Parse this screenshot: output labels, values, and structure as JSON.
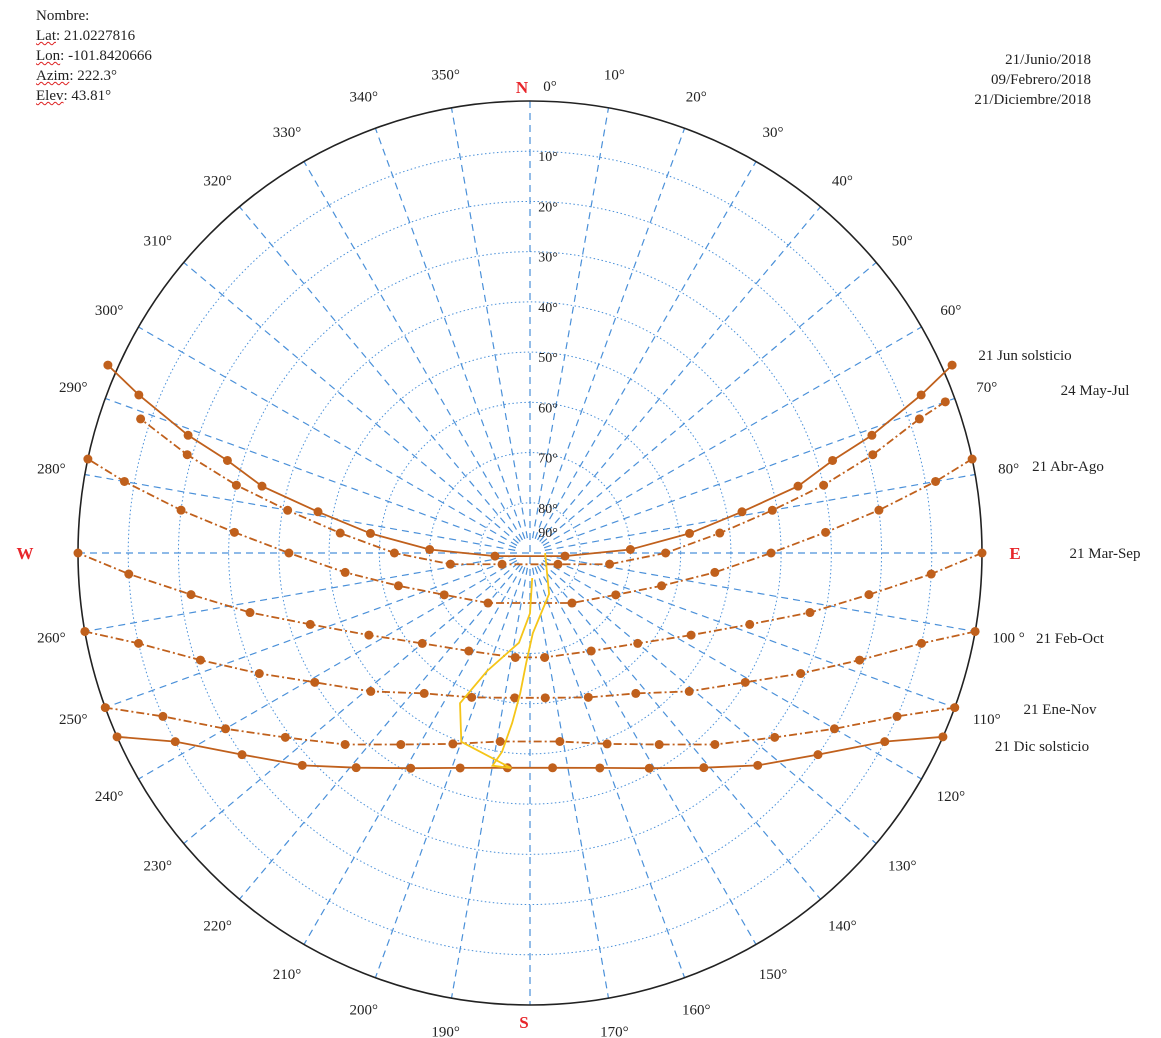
{
  "info": {
    "nombre": "Nombre:",
    "lat_label": "Lat",
    "lat_value": ": 21.0227816",
    "lon_label": "Lon",
    "lon_value": ": -101.8420666",
    "azim_label": "Azim",
    "azim_value": ": 222.3°",
    "elev_label": "Elev",
    "elev_value": ": 43.81°"
  },
  "dates": [
    "21/Junio/2018",
    "09/Febrero/2018",
    "21/Diciembre/2018"
  ],
  "compass": {
    "N": "N",
    "S": "S",
    "E": "E",
    "W": "W",
    "color": "#e8262b"
  },
  "chart_data": {
    "type": "scatter",
    "projection": "polar sun-path (azimuth clockwise from N, elevation 90 at center)",
    "azimuth_ticks": [
      "0°",
      "10°",
      "20°",
      "30°",
      "40°",
      "50°",
      "60°",
      "70°",
      "80°",
      "100 °",
      "110°",
      "120°",
      "130°",
      "140°",
      "150°",
      "160°",
      "170°",
      "190°",
      "200°",
      "210°",
      "220°",
      "230°",
      "240°",
      "250°",
      "260°",
      "280°",
      "290°",
      "300°",
      "310°",
      "320°",
      "330°",
      "340°",
      "350°"
    ],
    "elevation_ticks": [
      "10°",
      "20°",
      "30°",
      "40°",
      "50°",
      "60°",
      "70°",
      "80°",
      "90°"
    ],
    "grid_color": "#4a90d9",
    "series_color": "#c0601c",
    "series": [
      {
        "name": "21 Jun solsticio",
        "style": "solid",
        "x": [
          66,
          68,
          71,
          73,
          76,
          79,
          83,
          88,
          95,
          265,
          272,
          277,
          281,
          284,
          287,
          289,
          292,
          294
        ],
        "y": [
          -2,
          6,
          18,
          27,
          35,
          47,
          58,
          70,
          83,
          83,
          70,
          58,
          47,
          35,
          27,
          18,
          6,
          -2
        ]
      },
      {
        "name": "24 May-Jul",
        "style": "dashdot",
        "x": [
          70,
          71,
          74,
          77,
          80,
          84,
          90,
          98,
          112,
          248,
          262,
          270,
          276,
          280,
          283,
          286,
          289
        ],
        "y": [
          2,
          8,
          19,
          30,
          41,
          52,
          63,
          74,
          84,
          84,
          74,
          63,
          52,
          41,
          30,
          19,
          8
        ]
      },
      {
        "name": "21 Abr-Ago",
        "style": "dashdot",
        "x": [
          78,
          80,
          83,
          86,
          90,
          96,
          104,
          116,
          140,
          220,
          244,
          256,
          264,
          270,
          274,
          277,
          280,
          282
        ],
        "y": [
          0,
          8,
          20,
          31,
          42,
          53,
          63,
          71,
          77,
          77,
          71,
          63,
          53,
          42,
          31,
          20,
          8,
          0
        ]
      },
      {
        "name": "21 Mar-Sep",
        "style": "dashdot",
        "x": [
          90,
          93,
          97,
          102,
          108,
          117,
          130,
          148,
          172,
          188,
          212,
          230,
          243,
          252,
          258,
          263,
          267,
          270
        ],
        "y": [
          0,
          10,
          22,
          33,
          44,
          54,
          62,
          67,
          69,
          69,
          67,
          62,
          54,
          44,
          33,
          22,
          10,
          0
        ]
      },
      {
        "name": "21 Feb-Oct",
        "style": "dashdot",
        "x": [
          100,
          103,
          108,
          114,
          121,
          131,
          143,
          158,
          174,
          186,
          202,
          217,
          229,
          239,
          246,
          252,
          257,
          260
        ],
        "y": [
          0,
          10,
          21,
          31,
          40,
          48,
          55,
          59,
          61,
          61,
          59,
          55,
          48,
          40,
          31,
          21,
          10,
          0
        ]
      },
      {
        "name": "21 Ene-Nov",
        "style": "dashdot",
        "x": [
          110,
          114,
          120,
          127,
          136,
          146,
          158,
          171,
          189,
          202,
          214,
          224,
          233,
          240,
          246,
          250
        ],
        "y": [
          0,
          10,
          20,
          29,
          37,
          44,
          49,
          52,
          52,
          49,
          44,
          37,
          29,
          20,
          10,
          0
        ]
      },
      {
        "name": "21 Dic solsticio",
        "style": "solid",
        "x": [
          114,
          118,
          125,
          133,
          141,
          151,
          162,
          174,
          186,
          198,
          209,
          219,
          227,
          235,
          242,
          246
        ],
        "y": [
          0,
          10,
          20,
          28,
          35,
          41,
          45,
          47,
          47,
          45,
          41,
          35,
          28,
          20,
          10,
          0
        ]
      },
      {
        "name": "analemma",
        "style": "yellow",
        "x": [
          90,
          155,
          178,
          182,
          184,
          186,
          188,
          190,
          185,
          200,
          205,
          200,
          187,
          180,
          175
        ],
        "y": [
          87,
          81,
          74,
          68,
          62,
          56,
          50,
          47,
          47,
          50,
          57,
          65,
          72,
          78,
          85
        ]
      }
    ],
    "labels": [
      "21 Jun solsticio",
      "24 May-Jul",
      "21 Abr-Ago",
      "21 Mar-Sep",
      "21 Feb-Oct",
      "21 Ene-Nov",
      "21 Dic solsticio"
    ],
    "title": "",
    "xlabel": "",
    "ylabel": ""
  }
}
